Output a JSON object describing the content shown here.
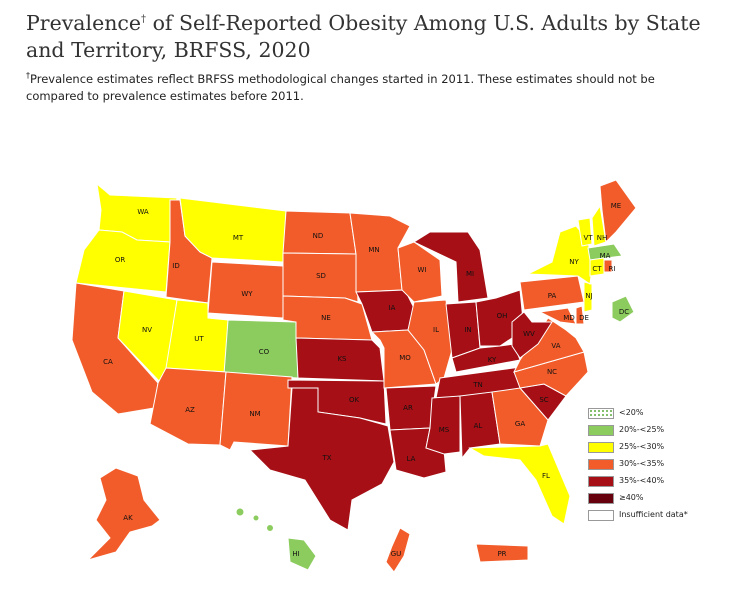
{
  "header": {
    "title_line1": "Prevalence",
    "title_rest": " of Self-Reported Obesity Among U.S. Adults by State and Territory, BRFSS, 2020",
    "title_dagger": "†",
    "note_dagger": "†",
    "note": "Prevalence estimates reflect BRFSS methodological changes started in 2011. These estimates should not be compared to prevalence estimates before 2011."
  },
  "colors": {
    "lt20": "#ffffff",
    "c20_25": "#8ccc5e",
    "c25_30": "#ffff00",
    "c30_35": "#f25c2a",
    "c35_40": "#a50f15",
    "ge40": "#67000d",
    "insufficient": "#ffffff"
  },
  "legend": [
    {
      "key": "lt20",
      "label": "<20%",
      "pattern": "dots"
    },
    {
      "key": "c20_25",
      "label": "20%-<25%"
    },
    {
      "key": "c25_30",
      "label": "25%-<30%"
    },
    {
      "key": "c30_35",
      "label": "30%-<35%"
    },
    {
      "key": "c35_40",
      "label": "35%-<40%"
    },
    {
      "key": "ge40",
      "label": "≥40%"
    },
    {
      "key": "insufficient",
      "label": "Insufficient data*"
    }
  ],
  "states": {
    "WA": "c25_30",
    "OR": "c25_30",
    "CA": "c30_35",
    "NV": "c25_30",
    "ID": "c30_35",
    "MT": "c25_30",
    "WY": "c30_35",
    "UT": "c25_30",
    "CO": "c20_25",
    "AZ": "c30_35",
    "NM": "c30_35",
    "ND": "c30_35",
    "SD": "c30_35",
    "NE": "c30_35",
    "KS": "c35_40",
    "OK": "c35_40",
    "TX": "c35_40",
    "MN": "c30_35",
    "IA": "c35_40",
    "MO": "c30_35",
    "AR": "c35_40",
    "LA": "c35_40",
    "WI": "c30_35",
    "IL": "c30_35",
    "MI": "c35_40",
    "IN": "c35_40",
    "OH": "c35_40",
    "KY": "c35_40",
    "TN": "c35_40",
    "MS": "c35_40",
    "AL": "c35_40",
    "GA": "c30_35",
    "FL": "c25_30",
    "SC": "c35_40",
    "NC": "c30_35",
    "VA": "c30_35",
    "WV": "c35_40",
    "PA": "c30_35",
    "NY": "c25_30",
    "VT": "c25_30",
    "NH": "c25_30",
    "ME": "c30_35",
    "MA": "c20_25",
    "CT": "c25_30",
    "RI": "c30_35",
    "NJ": "c25_30",
    "DE": "c30_35",
    "MD": "c30_35",
    "DC": "c20_25",
    "AK": "c30_35",
    "HI": "c20_25",
    "GU": "c30_35",
    "PR": "c30_35"
  }
}
